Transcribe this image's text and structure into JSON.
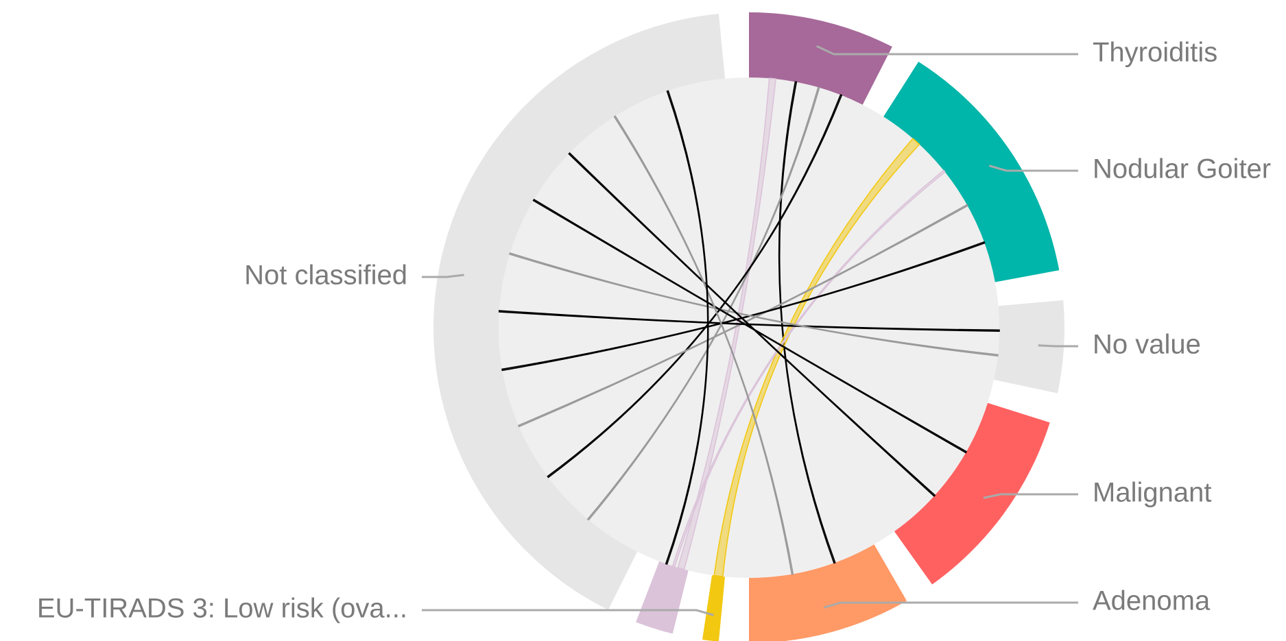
{
  "chart_data": {
    "type": "chord",
    "nodes": [
      {
        "label": "Thyroiditis",
        "value": 27,
        "color": "#a66999"
      },
      {
        "label": "Nodular Goiter",
        "value": 47,
        "color": "#00b5a9"
      },
      {
        "label": "No value",
        "value": 17,
        "color": "#e6e6e6"
      },
      {
        "label": "Malignant",
        "value": 37,
        "color": "#ff6161"
      },
      {
        "label": "Adenoma",
        "value": 30,
        "color": "#ff9966"
      },
      {
        "label": "EU-TIRADS 3: Low risk (ova...",
        "value": 3,
        "color": "#f2c811"
      },
      {
        "label": null,
        "value": 7,
        "color": "#dbc3d9"
      },
      {
        "label": "Not classified",
        "value": 148,
        "color": "#e6e6e6"
      }
    ],
    "links": [
      {
        "source": 0,
        "target": 6,
        "value": 1.5,
        "color": "#dbc3d9"
      },
      {
        "source": 0,
        "target": 4,
        "value": 0.3,
        "color": "#000000"
      },
      {
        "source": 0,
        "target": 7,
        "value": 0.3,
        "color": "#999999"
      },
      {
        "source": 0,
        "target": 7,
        "value": 0.3,
        "color": "#000000"
      },
      {
        "source": 1,
        "target": 5,
        "value": 2,
        "color": "#f2c811"
      },
      {
        "source": 1,
        "target": 6,
        "value": 0.5,
        "color": "#dbc3d9"
      },
      {
        "source": 1,
        "target": 7,
        "value": 0.3,
        "color": "#999999"
      },
      {
        "source": 1,
        "target": 7,
        "value": 0.3,
        "color": "#000000"
      },
      {
        "source": 2,
        "target": 7,
        "value": 0.3,
        "color": "#000000"
      },
      {
        "source": 2,
        "target": 7,
        "value": 0.3,
        "color": "#999999"
      },
      {
        "source": 3,
        "target": 7,
        "value": 0.3,
        "color": "#000000"
      },
      {
        "source": 3,
        "target": 7,
        "value": 0.3,
        "color": "#000000"
      },
      {
        "source": 4,
        "target": 7,
        "value": 0.3,
        "color": "#999999"
      },
      {
        "source": 6,
        "target": 7,
        "value": 0.3,
        "color": "#000000"
      }
    ]
  }
}
